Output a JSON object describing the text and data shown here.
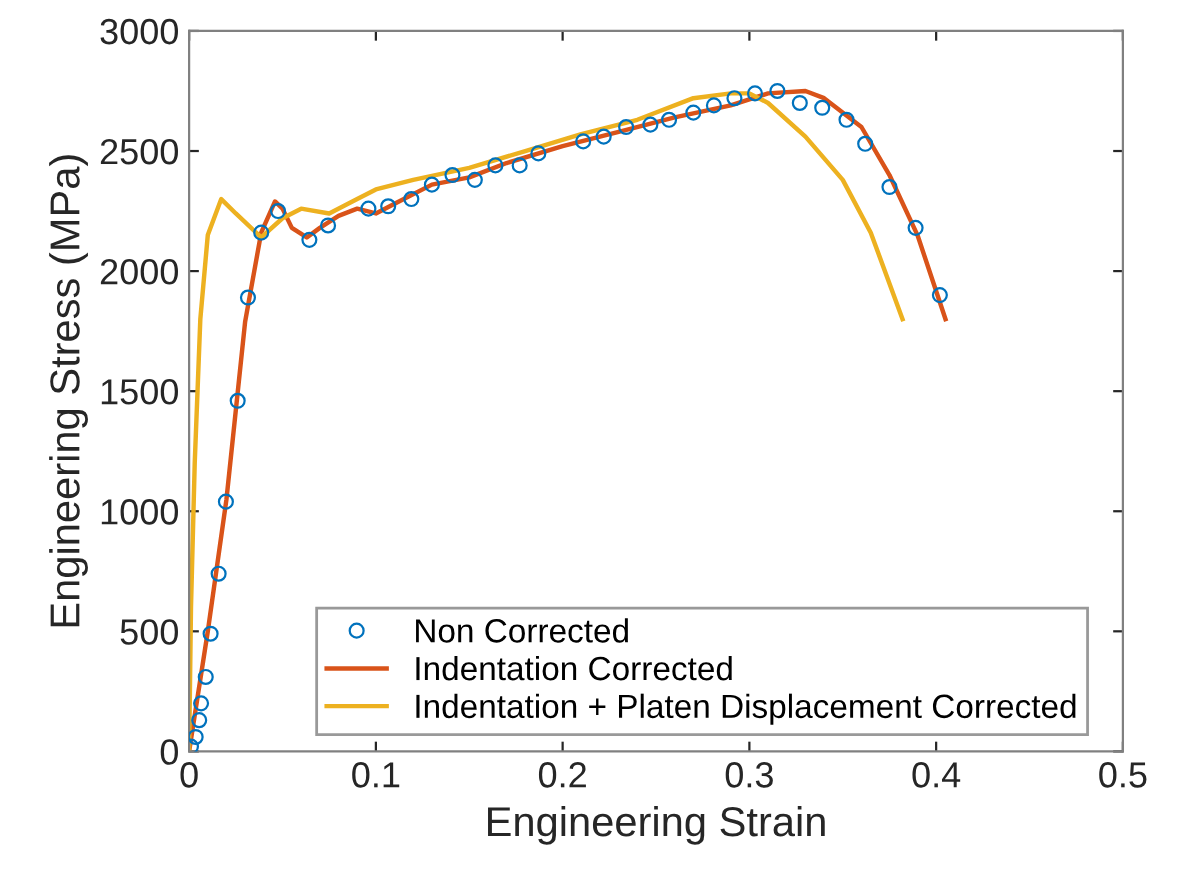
{
  "chart_data": {
    "type": "line",
    "xlabel": "Engineering Strain",
    "ylabel": "Engineering Stress (MPa)",
    "xlim": [
      0,
      0.5
    ],
    "ylim": [
      0,
      3000
    ],
    "xticks": [
      0,
      0.1,
      0.2,
      0.3,
      0.4,
      0.5
    ],
    "yticks": [
      0,
      500,
      1000,
      1500,
      2000,
      2500,
      3000
    ],
    "legend": "bottom right",
    "series": [
      {
        "name": "Non Corrected",
        "type": "scatter",
        "marker": "circle",
        "color": "#0072bd",
        "x": [
          0.001,
          0.0035,
          0.0054,
          0.0064,
          0.0089,
          0.0115,
          0.0158,
          0.0197,
          0.026,
          0.0315,
          0.0386,
          0.0476,
          0.0644,
          0.0744,
          0.096,
          0.1066,
          0.119,
          0.13,
          0.141,
          0.153,
          0.164,
          0.177,
          0.187,
          0.211,
          0.222,
          0.234,
          0.247,
          0.257,
          0.27,
          0.281,
          0.292,
          0.303,
          0.315,
          0.327,
          0.339,
          0.352,
          0.362,
          0.375,
          0.389,
          0.402
        ],
        "values": [
          20,
          60,
          130,
          200,
          310,
          490,
          740,
          1040,
          1460,
          1890,
          2160,
          2250,
          2130,
          2190,
          2260,
          2270,
          2300,
          2360,
          2400,
          2380,
          2440,
          2440,
          2490,
          2540,
          2560,
          2600,
          2610,
          2630,
          2660,
          2690,
          2720,
          2740,
          2750,
          2700,
          2680,
          2630,
          2530,
          2350,
          2180,
          1900
        ]
      },
      {
        "name": "Indentation Corrected",
        "color": "#d95319",
        "x": [
          0,
          0.01,
          0.02,
          0.03,
          0.0386,
          0.046,
          0.05,
          0.055,
          0.063,
          0.07,
          0.08,
          0.09,
          0.1,
          0.11,
          0.13,
          0.15,
          0.17,
          0.2,
          0.23,
          0.26,
          0.29,
          0.31,
          0.33,
          0.34,
          0.36,
          0.375,
          0.39,
          0.405
        ],
        "values": [
          0,
          500,
          1050,
          1790,
          2160,
          2290,
          2260,
          2180,
          2140,
          2180,
          2230,
          2260,
          2240,
          2280,
          2360,
          2390,
          2450,
          2520,
          2580,
          2640,
          2690,
          2740,
          2750,
          2720,
          2600,
          2400,
          2150,
          1800
        ]
      },
      {
        "name": "Indentation + Platen Displacement Corrected",
        "color": "#edb120",
        "x": [
          0,
          0.001,
          0.003,
          0.006,
          0.01,
          0.0172,
          0.025,
          0.0386,
          0.05,
          0.06,
          0.075,
          0.09,
          0.1,
          0.12,
          0.15,
          0.18,
          0.21,
          0.24,
          0.27,
          0.29,
          0.3,
          0.31,
          0.33,
          0.35,
          0.365,
          0.382
        ],
        "values": [
          0,
          600,
          1200,
          1800,
          2150,
          2300,
          2240,
          2140,
          2220,
          2260,
          2240,
          2300,
          2340,
          2380,
          2430,
          2500,
          2570,
          2630,
          2720,
          2740,
          2740,
          2700,
          2560,
          2380,
          2160,
          1800
        ]
      }
    ]
  }
}
